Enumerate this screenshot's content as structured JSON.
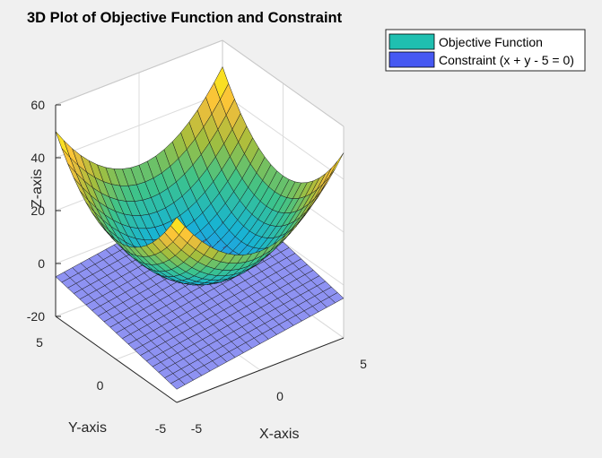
{
  "chart_data": {
    "type": "surface3d",
    "title": "3D Plot of Objective Function and Constraint",
    "xlabel": "X-axis",
    "ylabel": "Y-axis",
    "zlabel": "Z-axis",
    "xlim": [
      -5,
      5
    ],
    "ylim": [
      -5,
      5
    ],
    "zlim": [
      -20,
      60
    ],
    "x_ticks": [
      "-5",
      "0",
      "5"
    ],
    "y_ticks": [
      "-5",
      "0",
      "5"
    ],
    "z_ticks": [
      "-20",
      "0",
      "20",
      "40",
      "60"
    ],
    "x_tick_values": [
      -5,
      0,
      5
    ],
    "y_tick_values": [
      -5,
      0,
      5
    ],
    "z_tick_values": [
      -20,
      0,
      20,
      40,
      60
    ],
    "grid": true,
    "mesh_resolution": 21,
    "legend_placement": "top-right outside",
    "series": [
      {
        "name": "Objective Function",
        "formula": "z = x^2 + y^2",
        "color": "#1fbfb0",
        "colormap": "parula"
      },
      {
        "name": "Constraint (x + y - 5 = 0)",
        "formula": "z = x + y - 5",
        "color": "#4658f2",
        "face_color": "#8e92f2"
      }
    ]
  }
}
